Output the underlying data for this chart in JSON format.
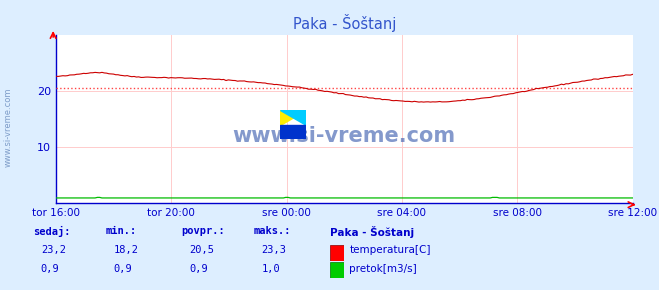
{
  "title": "Paka - Šoštanj",
  "bg_color": "#ddeeff",
  "plot_bg_color": "#ffffff",
  "grid_color": "#ffcccc",
  "x_labels": [
    "tor 16:00",
    "tor 20:00",
    "sre 00:00",
    "sre 04:00",
    "sre 08:00",
    "sre 12:00"
  ],
  "y_min": 0,
  "y_max": 30,
  "y_ticks": [
    10,
    20
  ],
  "temp_avg": 20.5,
  "avg_line_color": "#ff4444",
  "temp_line_color": "#cc0000",
  "flow_line_color": "#00bb00",
  "watermark": "www.si-vreme.com",
  "watermark_color": "#3355aa",
  "title_color": "#3355cc",
  "label_color": "#0000cc",
  "axis_label_color": "#0000cc",
  "legend_title": "Paka - Šoštanj",
  "legend_temp_label": "temperatura[C]",
  "legend_flow_label": "pretok[m3/s]",
  "stats_labels": [
    "sedaj:",
    "min.:",
    "povpr.:",
    "maks.:"
  ],
  "stats_temp": [
    "23,2",
    "18,2",
    "20,5",
    "23,3"
  ],
  "stats_flow": [
    "0,9",
    "0,9",
    "0,9",
    "1,0"
  ],
  "num_points": 252,
  "spine_color": "#0000cc",
  "left_label": "www.si-vreme.com"
}
